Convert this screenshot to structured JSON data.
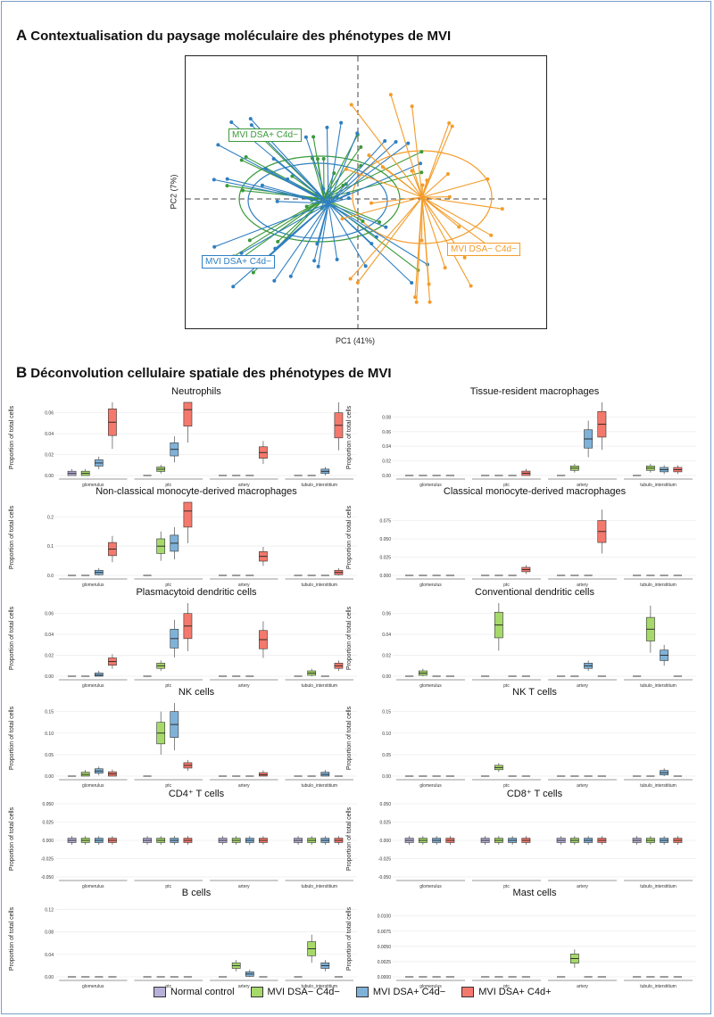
{
  "section_a": {
    "letter": "A",
    "title": "Contextualisation du paysage moléculaire des phénotypes de MVI"
  },
  "section_b": {
    "letter": "B",
    "title": "Déconvolution cellulaire spatiale des phénotypes de MVI"
  },
  "colors": {
    "normal": "#b8b0d8",
    "dsa_neg_c4d_neg": "#a6d96a",
    "dsa_pos_c4d_neg": "#7fb2d9",
    "dsa_pos_c4d_pos": "#f4796c",
    "pca_green": "#3a9a3a",
    "pca_blue": "#2f7fc1",
    "pca_orange": "#f39c2a"
  },
  "legend": [
    "Normal control",
    "MVI DSA− C4d−",
    "MVI DSA+ C4d−",
    "MVI DSA+ C4d+"
  ],
  "chart_data": [
    {
      "type": "scatter",
      "xlabel": "PC1 (41%)",
      "ylabel": "PC2 (7%)",
      "group_labels": [
        "MVI DSA+ C4d−",
        "MVI DSA+ C4d−",
        "MVI DSA− C4d−"
      ],
      "series": [
        {
          "name": "MVI DSA+ C4d−",
          "color": "green",
          "centroid": [
            -0.6,
            0.0
          ]
        },
        {
          "name": "MVI DSA+ C4d−",
          "color": "blue",
          "centroid": [
            -0.7,
            -0.1
          ]
        },
        {
          "name": "MVI DSA− C4d−",
          "color": "orange",
          "centroid": [
            0.6,
            0.0
          ]
        }
      ]
    },
    {
      "type": "box",
      "ylabel": "Proportion of total cells",
      "compartments": [
        "glomerulus",
        "ptc",
        "artery",
        "tubulo_interstitium"
      ],
      "panels": [
        {
          "title": "Neutrophils",
          "ymax": 0.07,
          "ticks": [
            "0.00",
            "0.02",
            "0.04",
            "0.06"
          ],
          "medians": [
            [
              0.002,
              0.002,
              0.012,
              0.051
            ],
            [
              0.0,
              0.006,
              0.025,
              0.063
            ],
            [
              0.0,
              0.0,
              0.0,
              0.022
            ],
            [
              0.0,
              0.0,
              0.004,
              0.048
            ]
          ]
        },
        {
          "title": "Tissue-resident macrophages",
          "ymax": 0.1,
          "ticks": [
            "0.00",
            "0.02",
            "0.04",
            "0.06",
            "0.08"
          ],
          "medians": [
            [
              0.0,
              0.0,
              0.0,
              0.0
            ],
            [
              0.0,
              0.0,
              0.0,
              0.003
            ],
            [
              0.0,
              0.01,
              0.05,
              0.07
            ],
            [
              0.0,
              0.01,
              0.008,
              0.008
            ]
          ]
        },
        {
          "title": "Non-classical monocyte-derived macrophages",
          "ymax": 0.25,
          "ticks": [
            "0.0",
            "0.1",
            "0.2"
          ],
          "medians": [
            [
              0.0,
              0.0,
              0.01,
              0.09
            ],
            [
              0.0,
              0.1,
              0.11,
              0.22
            ],
            [
              0.0,
              0.0,
              0.0,
              0.065
            ],
            [
              0.0,
              0.0,
              0.0,
              0.01
            ]
          ]
        },
        {
          "title": "Classical monocyte-derived macrophages",
          "ymax": 0.1,
          "ticks": [
            "0.000",
            "0.025",
            "0.050",
            "0.075"
          ],
          "medians": [
            [
              0.0,
              0.0,
              0.0,
              0.0
            ],
            [
              0.0,
              0.0,
              0.0,
              0.008
            ],
            [
              0.0,
              0.0,
              0.0,
              0.06
            ],
            [
              0.0,
              0.0,
              0.0,
              0.0
            ]
          ]
        },
        {
          "title": "Plasmacytoid dendritic cells",
          "ymax": 0.07,
          "ticks": [
            "0.00",
            "0.02",
            "0.04",
            "0.06"
          ],
          "medians": [
            [
              0.0,
              0.0,
              0.001,
              0.014
            ],
            [
              0.0,
              0.01,
              0.036,
              0.048
            ],
            [
              0.0,
              0.0,
              0.0,
              0.035
            ],
            [
              0.0,
              0.003,
              0.0,
              0.01
            ]
          ]
        },
        {
          "title": "Conventional dendritic cells",
          "ymax": 0.07,
          "ticks": [
            "0.00",
            "0.02",
            "0.04",
            "0.06"
          ],
          "medians": [
            [
              0.0,
              0.003,
              0.0,
              0.0
            ],
            [
              0.0,
              0.049,
              0.0,
              0.0
            ],
            [
              0.0,
              0.0,
              0.01,
              0.0
            ],
            [
              0.0,
              0.045,
              0.02,
              0.0
            ]
          ]
        },
        {
          "title": "NK cells",
          "ymax": 0.17,
          "ticks": [
            "0.00",
            "0.05",
            "0.10",
            "0.15"
          ],
          "medians": [
            [
              0.0,
              0.004,
              0.012,
              0.005
            ],
            [
              0.0,
              0.1,
              0.12,
              0.025
            ],
            [
              0.0,
              0.0,
              0.0,
              0.003
            ],
            [
              0.0,
              0.0,
              0.004,
              0.0
            ]
          ]
        },
        {
          "title": "NK T cells",
          "ymax": 0.17,
          "ticks": [
            "0.00",
            "0.05",
            "0.10",
            "0.15"
          ],
          "medians": [
            [
              0.0,
              0.0,
              0.0,
              0.0
            ],
            [
              0.0,
              0.02,
              0.0,
              0.0
            ],
            [
              0.0,
              0.0,
              0.0,
              0.0
            ],
            [
              0.0,
              0.0,
              0.008,
              0.0
            ]
          ]
        },
        {
          "title": "CD4⁺ T cells",
          "ymax": 0.05,
          "ymin": -0.05,
          "ticks": [
            "-0.050",
            "-0.025",
            "0.000",
            "0.025",
            "0.050"
          ],
          "medians": [
            [
              0,
              0,
              0,
              0
            ],
            [
              0,
              0,
              0,
              0
            ],
            [
              0,
              0,
              0,
              0
            ],
            [
              0,
              0,
              0,
              0
            ]
          ]
        },
        {
          "title": "CD8⁺ T cells",
          "ymax": 0.05,
          "ymin": -0.05,
          "ticks": [
            "-0.050",
            "-0.025",
            "0.000",
            "0.025",
            "0.050"
          ],
          "medians": [
            [
              0,
              0,
              0,
              0
            ],
            [
              0,
              0,
              0,
              0
            ],
            [
              0,
              0,
              0,
              0
            ],
            [
              0,
              0,
              0,
              0
            ]
          ]
        },
        {
          "title": "B cells",
          "ymax": 0.13,
          "ticks": [
            "0.00",
            "0.04",
            "0.08",
            "0.12"
          ],
          "medians": [
            [
              0,
              0,
              0,
              0
            ],
            [
              0,
              0,
              0,
              0
            ],
            [
              0.0,
              0.02,
              0.005,
              0.0
            ],
            [
              0.0,
              0.05,
              0.02,
              0.0
            ]
          ]
        },
        {
          "title": "Mast cells",
          "ymax": 0.012,
          "ticks": [
            "0.0000",
            "0.0025",
            "0.0050",
            "0.0075",
            "0.0100"
          ],
          "medians": [
            [
              0,
              0,
              0,
              0
            ],
            [
              0,
              0,
              0,
              0
            ],
            [
              0.0,
              0.003,
              0.0,
              0.0
            ],
            [
              0,
              0,
              0,
              0
            ]
          ]
        }
      ]
    }
  ]
}
